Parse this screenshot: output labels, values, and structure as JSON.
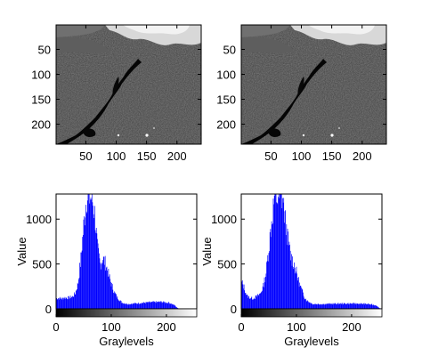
{
  "chart_data": [
    {
      "type": "image",
      "panel": "top-left",
      "description_free": true,
      "x_ticks": [
        50,
        100,
        150,
        200
      ],
      "y_ticks": [
        50,
        100,
        150,
        200
      ],
      "xlim": [
        1,
        240
      ],
      "ylim": [
        1,
        240
      ],
      "y_reversed": true
    },
    {
      "type": "image",
      "panel": "top-right",
      "x_ticks": [
        50,
        100,
        150,
        200
      ],
      "y_ticks": [
        50,
        100,
        150,
        200
      ],
      "xlim": [
        1,
        240
      ],
      "ylim": [
        1,
        240
      ],
      "y_reversed": true
    },
    {
      "type": "bar",
      "panel": "bottom-left",
      "xlabel": "Graylevels",
      "ylabel": "Value",
      "xlim": [
        0,
        255
      ],
      "ylim": [
        0,
        1280
      ],
      "x_ticks": [
        0,
        100,
        200
      ],
      "y_ticks": [
        0,
        500,
        1000
      ],
      "bar_color": "#0000ff",
      "colorbar": "grayscale",
      "profile": [
        [
          0,
          120
        ],
        [
          5,
          125
        ],
        [
          10,
          115
        ],
        [
          15,
          130
        ],
        [
          20,
          125
        ],
        [
          25,
          130
        ],
        [
          30,
          140
        ],
        [
          35,
          180
        ],
        [
          40,
          300
        ],
        [
          45,
          580
        ],
        [
          50,
          950
        ],
        [
          55,
          1280
        ],
        [
          60,
          1280
        ],
        [
          65,
          1280
        ],
        [
          70,
          1100
        ],
        [
          75,
          700
        ],
        [
          80,
          520
        ],
        [
          85,
          580
        ],
        [
          90,
          520
        ],
        [
          95,
          400
        ],
        [
          100,
          290
        ],
        [
          105,
          200
        ],
        [
          110,
          140
        ],
        [
          115,
          100
        ],
        [
          120,
          70
        ],
        [
          130,
          55
        ],
        [
          150,
          65
        ],
        [
          170,
          75
        ],
        [
          190,
          80
        ],
        [
          205,
          70
        ],
        [
          215,
          40
        ],
        [
          220,
          10
        ],
        [
          225,
          0
        ],
        [
          255,
          0
        ]
      ]
    },
    {
      "type": "bar",
      "panel": "bottom-right",
      "xlabel": "Graylevels",
      "ylabel": "Value",
      "xlim": [
        0,
        255
      ],
      "ylim": [
        0,
        1280
      ],
      "x_ticks": [
        0,
        100,
        200
      ],
      "y_ticks": [
        0,
        500,
        1000
      ],
      "bar_color": "#0000ff",
      "colorbar": "grayscale",
      "profile": [
        [
          0,
          320
        ],
        [
          5,
          250
        ],
        [
          10,
          150
        ],
        [
          15,
          130
        ],
        [
          20,
          120
        ],
        [
          25,
          130
        ],
        [
          30,
          150
        ],
        [
          35,
          180
        ],
        [
          40,
          260
        ],
        [
          45,
          420
        ],
        [
          50,
          700
        ],
        [
          55,
          1000
        ],
        [
          60,
          1280
        ],
        [
          65,
          1280
        ],
        [
          70,
          1280
        ],
        [
          75,
          1280
        ],
        [
          80,
          1000
        ],
        [
          85,
          780
        ],
        [
          90,
          600
        ],
        [
          95,
          530
        ],
        [
          100,
          420
        ],
        [
          105,
          300
        ],
        [
          110,
          210
        ],
        [
          115,
          130
        ],
        [
          120,
          90
        ],
        [
          130,
          55
        ],
        [
          150,
          55
        ],
        [
          180,
          60
        ],
        [
          210,
          60
        ],
        [
          230,
          55
        ],
        [
          245,
          40
        ],
        [
          250,
          10
        ],
        [
          255,
          0
        ]
      ]
    }
  ]
}
